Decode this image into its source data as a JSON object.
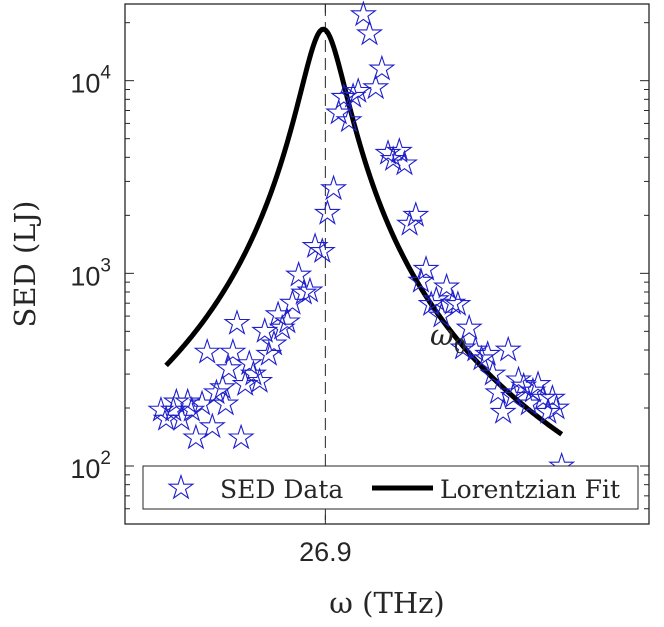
{
  "chart_data": {
    "type": "scatter",
    "title": "",
    "xlabel": "ω (THz)",
    "ylabel": "SED (LJ)",
    "yscale": "log",
    "xlim": [
      26.705,
      27.215
    ],
    "ylim": [
      50,
      25000
    ],
    "xticks": [
      {
        "value": 26.9,
        "label": "26.9"
      }
    ],
    "yticks": [
      {
        "value": 100,
        "base": "10",
        "exp": "2"
      },
      {
        "value": 1000,
        "base": "10",
        "exp": "3"
      },
      {
        "value": 10000,
        "base": "10",
        "exp": "4"
      }
    ],
    "vline": {
      "x": 26.9,
      "label": "ω",
      "label_sub": "0"
    },
    "legend": {
      "position": "bottom",
      "entries": [
        "SED Data",
        "Lorentzian Fit"
      ]
    },
    "colors": {
      "data": "#1f1fcc",
      "fit": "#000000",
      "axis": "#262626"
    },
    "series": [
      {
        "name": "SED Data",
        "marker": "pentagram",
        "x": [
          26.74,
          26.745,
          26.752,
          26.755,
          26.76,
          26.766,
          26.77,
          26.774,
          26.78,
          26.785,
          26.79,
          26.794,
          26.8,
          26.803,
          26.806,
          26.81,
          26.814,
          26.818,
          26.822,
          26.826,
          26.83,
          26.836,
          26.841,
          26.845,
          26.85,
          26.854,
          26.858,
          26.863,
          26.868,
          26.874,
          26.879,
          26.885,
          26.89,
          26.897,
          26.902,
          26.908,
          26.913,
          26.918,
          26.923,
          26.927,
          26.932,
          26.937,
          26.943,
          26.949,
          26.955,
          26.961,
          26.966,
          26.972,
          26.977,
          26.982,
          26.988,
          26.993,
          26.998,
          27.003,
          27.008,
          27.013,
          27.018,
          27.024,
          27.029,
          27.034,
          27.04,
          27.046,
          27.052,
          27.058,
          27.063,
          27.068,
          27.073,
          27.078,
          27.083,
          27.088,
          27.093,
          27.098,
          27.102,
          27.107,
          27.112,
          27.117,
          27.121,
          27.125,
          27.13
        ],
        "y": [
          195,
          175,
          195,
          215,
          175,
          215,
          195,
          140,
          210,
          390,
          160,
          240,
          255,
          210,
          320,
          390,
          550,
          140,
          265,
          340,
          300,
          275,
          500,
          380,
          430,
          610,
          520,
          560,
          700,
          980,
          790,
          810,
          1380,
          1300,
          2050,
          2750,
          6800,
          8200,
          6200,
          8300,
          8800,
          22000,
          17500,
          9200,
          11500,
          4200,
          3900,
          4300,
          3700,
          1800,
          2000,
          910,
          1050,
          690,
          730,
          600,
          850,
          700,
          690,
          410,
          520,
          400,
          360,
          380,
          300,
          240,
          190,
          400,
          230,
          280,
          260,
          210,
          245,
          265,
          225,
          190,
          225,
          200,
          100
        ]
      },
      {
        "name": "Lorentzian Fit",
        "function": "lorentzian",
        "x0": 26.898,
        "gamma": 0.0207,
        "peak": 18500,
        "x_range": [
          26.745,
          27.13
        ]
      }
    ]
  }
}
